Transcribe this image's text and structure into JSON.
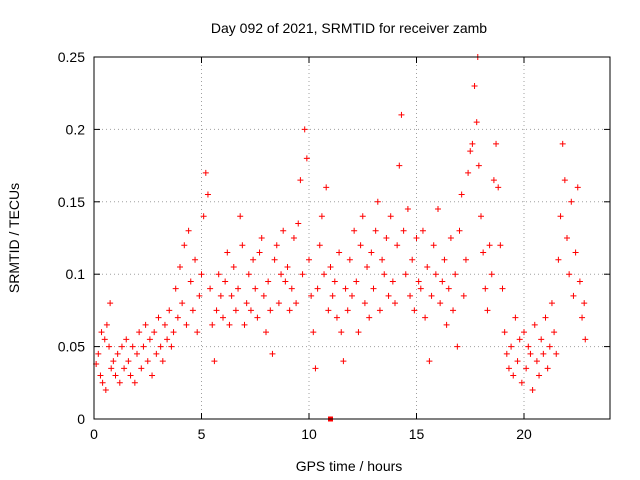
{
  "chart_data": {
    "type": "scatter",
    "title": "Day 092 of 2021, SRMTID for receiver zamb",
    "xlabel": "GPS time / hours",
    "ylabel": "SRMTID / TECUs",
    "xlim": [
      0,
      24
    ],
    "ylim": [
      0,
      0.25
    ],
    "xticks": [
      0,
      5,
      10,
      15,
      20
    ],
    "xtick_labels": [
      "0",
      "5",
      "10",
      "15",
      "20"
    ],
    "yticks": [
      0,
      0.05,
      0.1,
      0.15,
      0.2,
      0.25
    ],
    "ytick_labels": [
      "0",
      "0.05",
      "0.1",
      "0.15",
      "0.2",
      "0.25"
    ],
    "grid": true,
    "marker": "+",
    "color": "#ff0000",
    "series": [
      {
        "name": "SRMTID",
        "points": [
          [
            0.1,
            0.038
          ],
          [
            0.2,
            0.045
          ],
          [
            0.3,
            0.03
          ],
          [
            0.35,
            0.06
          ],
          [
            0.4,
            0.025
          ],
          [
            0.5,
            0.055
          ],
          [
            0.55,
            0.02
          ],
          [
            0.6,
            0.065
          ],
          [
            0.7,
            0.05
          ],
          [
            0.75,
            0.08
          ],
          [
            0.8,
            0.035
          ],
          [
            0.9,
            0.04
          ],
          [
            1.0,
            0.03
          ],
          [
            1.1,
            0.045
          ],
          [
            1.2,
            0.025
          ],
          [
            1.3,
            0.05
          ],
          [
            1.4,
            0.035
          ],
          [
            1.5,
            0.055
          ],
          [
            1.6,
            0.04
          ],
          [
            1.7,
            0.03
          ],
          [
            1.8,
            0.05
          ],
          [
            1.9,
            0.025
          ],
          [
            2.0,
            0.045
          ],
          [
            2.1,
            0.06
          ],
          [
            2.2,
            0.035
          ],
          [
            2.3,
            0.05
          ],
          [
            2.4,
            0.065
          ],
          [
            2.5,
            0.04
          ],
          [
            2.6,
            0.055
          ],
          [
            2.7,
            0.03
          ],
          [
            2.8,
            0.06
          ],
          [
            2.9,
            0.045
          ],
          [
            3.0,
            0.07
          ],
          [
            3.1,
            0.05
          ],
          [
            3.2,
            0.04
          ],
          [
            3.3,
            0.065
          ],
          [
            3.4,
            0.055
          ],
          [
            3.5,
            0.075
          ],
          [
            3.6,
            0.05
          ],
          [
            3.7,
            0.06
          ],
          [
            3.8,
            0.09
          ],
          [
            3.9,
            0.07
          ],
          [
            4.0,
            0.105
          ],
          [
            4.1,
            0.08
          ],
          [
            4.2,
            0.12
          ],
          [
            4.3,
            0.065
          ],
          [
            4.4,
            0.13
          ],
          [
            4.5,
            0.095
          ],
          [
            4.6,
            0.075
          ],
          [
            4.7,
            0.11
          ],
          [
            4.8,
            0.06
          ],
          [
            4.9,
            0.085
          ],
          [
            5.0,
            0.1
          ],
          [
            5.1,
            0.14
          ],
          [
            5.2,
            0.17
          ],
          [
            5.3,
            0.155
          ],
          [
            5.4,
            0.09
          ],
          [
            5.5,
            0.065
          ],
          [
            5.6,
            0.04
          ],
          [
            5.7,
            0.075
          ],
          [
            5.8,
            0.1
          ],
          [
            5.9,
            0.085
          ],
          [
            6.0,
            0.07
          ],
          [
            6.1,
            0.095
          ],
          [
            6.2,
            0.115
          ],
          [
            6.3,
            0.065
          ],
          [
            6.4,
            0.085
          ],
          [
            6.5,
            0.105
          ],
          [
            6.6,
            0.075
          ],
          [
            6.7,
            0.09
          ],
          [
            6.8,
            0.14
          ],
          [
            6.9,
            0.12
          ],
          [
            7.0,
            0.065
          ],
          [
            7.1,
            0.08
          ],
          [
            7.2,
            0.1
          ],
          [
            7.3,
            0.075
          ],
          [
            7.4,
            0.11
          ],
          [
            7.5,
            0.09
          ],
          [
            7.6,
            0.07
          ],
          [
            7.7,
            0.115
          ],
          [
            7.8,
            0.125
          ],
          [
            7.9,
            0.085
          ],
          [
            8.0,
            0.06
          ],
          [
            8.1,
            0.095
          ],
          [
            8.2,
            0.075
          ],
          [
            8.3,
            0.045
          ],
          [
            8.4,
            0.11
          ],
          [
            8.5,
            0.12
          ],
          [
            8.6,
            0.08
          ],
          [
            8.7,
            0.1
          ],
          [
            8.8,
            0.13
          ],
          [
            8.9,
            0.095
          ],
          [
            9.0,
            0.105
          ],
          [
            9.1,
            0.075
          ],
          [
            9.2,
            0.09
          ],
          [
            9.3,
            0.125
          ],
          [
            9.4,
            0.08
          ],
          [
            9.5,
            0.135
          ],
          [
            9.6,
            0.165
          ],
          [
            9.7,
            0.1
          ],
          [
            9.8,
            0.2
          ],
          [
            9.9,
            0.18
          ],
          [
            10.0,
            0.11
          ],
          [
            10.1,
            0.085
          ],
          [
            10.2,
            0.06
          ],
          [
            10.3,
            0.035
          ],
          [
            10.4,
            0.09
          ],
          [
            10.5,
            0.12
          ],
          [
            10.6,
            0.14
          ],
          [
            10.7,
            0.1
          ],
          [
            10.8,
            0.16
          ],
          [
            10.9,
            0.075
          ],
          [
            11.0,
            0.105
          ],
          [
            11.1,
            0.085
          ],
          [
            11.2,
            0.095
          ],
          [
            11.3,
            0.07
          ],
          [
            11.4,
            0.115
          ],
          [
            11.5,
            0.06
          ],
          [
            11.6,
            0.04
          ],
          [
            11.7,
            0.09
          ],
          [
            11.8,
            0.075
          ],
          [
            11.9,
            0.11
          ],
          [
            12.0,
            0.085
          ],
          [
            12.1,
            0.13
          ],
          [
            12.2,
            0.095
          ],
          [
            12.3,
            0.06
          ],
          [
            12.4,
            0.12
          ],
          [
            12.5,
            0.14
          ],
          [
            12.6,
            0.08
          ],
          [
            12.7,
            0.105
          ],
          [
            12.8,
            0.07
          ],
          [
            12.9,
            0.115
          ],
          [
            13.0,
            0.09
          ],
          [
            13.1,
            0.13
          ],
          [
            13.2,
            0.15
          ],
          [
            13.3,
            0.075
          ],
          [
            13.4,
            0.11
          ],
          [
            13.5,
            0.1
          ],
          [
            13.6,
            0.125
          ],
          [
            13.7,
            0.085
          ],
          [
            13.8,
            0.14
          ],
          [
            13.9,
            0.095
          ],
          [
            14.0,
            0.08
          ],
          [
            14.1,
            0.12
          ],
          [
            14.2,
            0.175
          ],
          [
            14.3,
            0.21
          ],
          [
            14.4,
            0.13
          ],
          [
            14.5,
            0.1
          ],
          [
            14.6,
            0.145
          ],
          [
            14.7,
            0.085
          ],
          [
            14.8,
            0.11
          ],
          [
            14.9,
            0.075
          ],
          [
            15.0,
            0.125
          ],
          [
            15.1,
            0.095
          ],
          [
            15.2,
            0.09
          ],
          [
            15.3,
            0.13
          ],
          [
            15.4,
            0.07
          ],
          [
            15.5,
            0.105
          ],
          [
            15.6,
            0.04
          ],
          [
            15.7,
            0.085
          ],
          [
            15.8,
            0.12
          ],
          [
            15.9,
            0.1
          ],
          [
            16.0,
            0.145
          ],
          [
            16.1,
            0.08
          ],
          [
            16.2,
            0.095
          ],
          [
            16.3,
            0.11
          ],
          [
            16.4,
            0.065
          ],
          [
            16.5,
            0.09
          ],
          [
            16.6,
            0.125
          ],
          [
            16.7,
            0.075
          ],
          [
            16.8,
            0.1
          ],
          [
            16.9,
            0.05
          ],
          [
            17.0,
            0.13
          ],
          [
            17.1,
            0.155
          ],
          [
            17.2,
            0.085
          ],
          [
            17.3,
            0.11
          ],
          [
            17.4,
            0.17
          ],
          [
            17.5,
            0.185
          ],
          [
            17.6,
            0.19
          ],
          [
            17.7,
            0.23
          ],
          [
            17.8,
            0.205
          ],
          [
            17.85,
            0.25
          ],
          [
            17.9,
            0.175
          ],
          [
            18.0,
            0.14
          ],
          [
            18.1,
            0.115
          ],
          [
            18.2,
            0.09
          ],
          [
            18.3,
            0.075
          ],
          [
            18.4,
            0.12
          ],
          [
            18.5,
            0.1
          ],
          [
            18.6,
            0.165
          ],
          [
            18.7,
            0.19
          ],
          [
            18.8,
            0.16
          ],
          [
            18.9,
            0.12
          ],
          [
            19.0,
            0.09
          ],
          [
            19.1,
            0.06
          ],
          [
            19.2,
            0.045
          ],
          [
            19.3,
            0.035
          ],
          [
            19.4,
            0.05
          ],
          [
            19.5,
            0.03
          ],
          [
            19.6,
            0.07
          ],
          [
            19.7,
            0.04
          ],
          [
            19.8,
            0.055
          ],
          [
            19.9,
            0.025
          ],
          [
            20.0,
            0.06
          ],
          [
            20.1,
            0.035
          ],
          [
            20.2,
            0.05
          ],
          [
            20.3,
            0.045
          ],
          [
            20.4,
            0.02
          ],
          [
            20.5,
            0.065
          ],
          [
            20.6,
            0.04
          ],
          [
            20.7,
            0.03
          ],
          [
            20.8,
            0.055
          ],
          [
            20.9,
            0.045
          ],
          [
            21.0,
            0.07
          ],
          [
            21.1,
            0.035
          ],
          [
            21.2,
            0.05
          ],
          [
            21.3,
            0.08
          ],
          [
            21.4,
            0.06
          ],
          [
            21.5,
            0.045
          ],
          [
            21.6,
            0.11
          ],
          [
            21.7,
            0.14
          ],
          [
            21.8,
            0.19
          ],
          [
            21.9,
            0.165
          ],
          [
            22.0,
            0.125
          ],
          [
            22.1,
            0.1
          ],
          [
            22.2,
            0.15
          ],
          [
            22.3,
            0.085
          ],
          [
            22.4,
            0.115
          ],
          [
            22.5,
            0.16
          ],
          [
            22.6,
            0.095
          ],
          [
            22.7,
            0.07
          ],
          [
            22.8,
            0.08
          ],
          [
            22.85,
            0.055
          ]
        ]
      }
    ],
    "outlier_marker": {
      "x": 11.0,
      "y": 0.0,
      "shape": "square"
    }
  }
}
